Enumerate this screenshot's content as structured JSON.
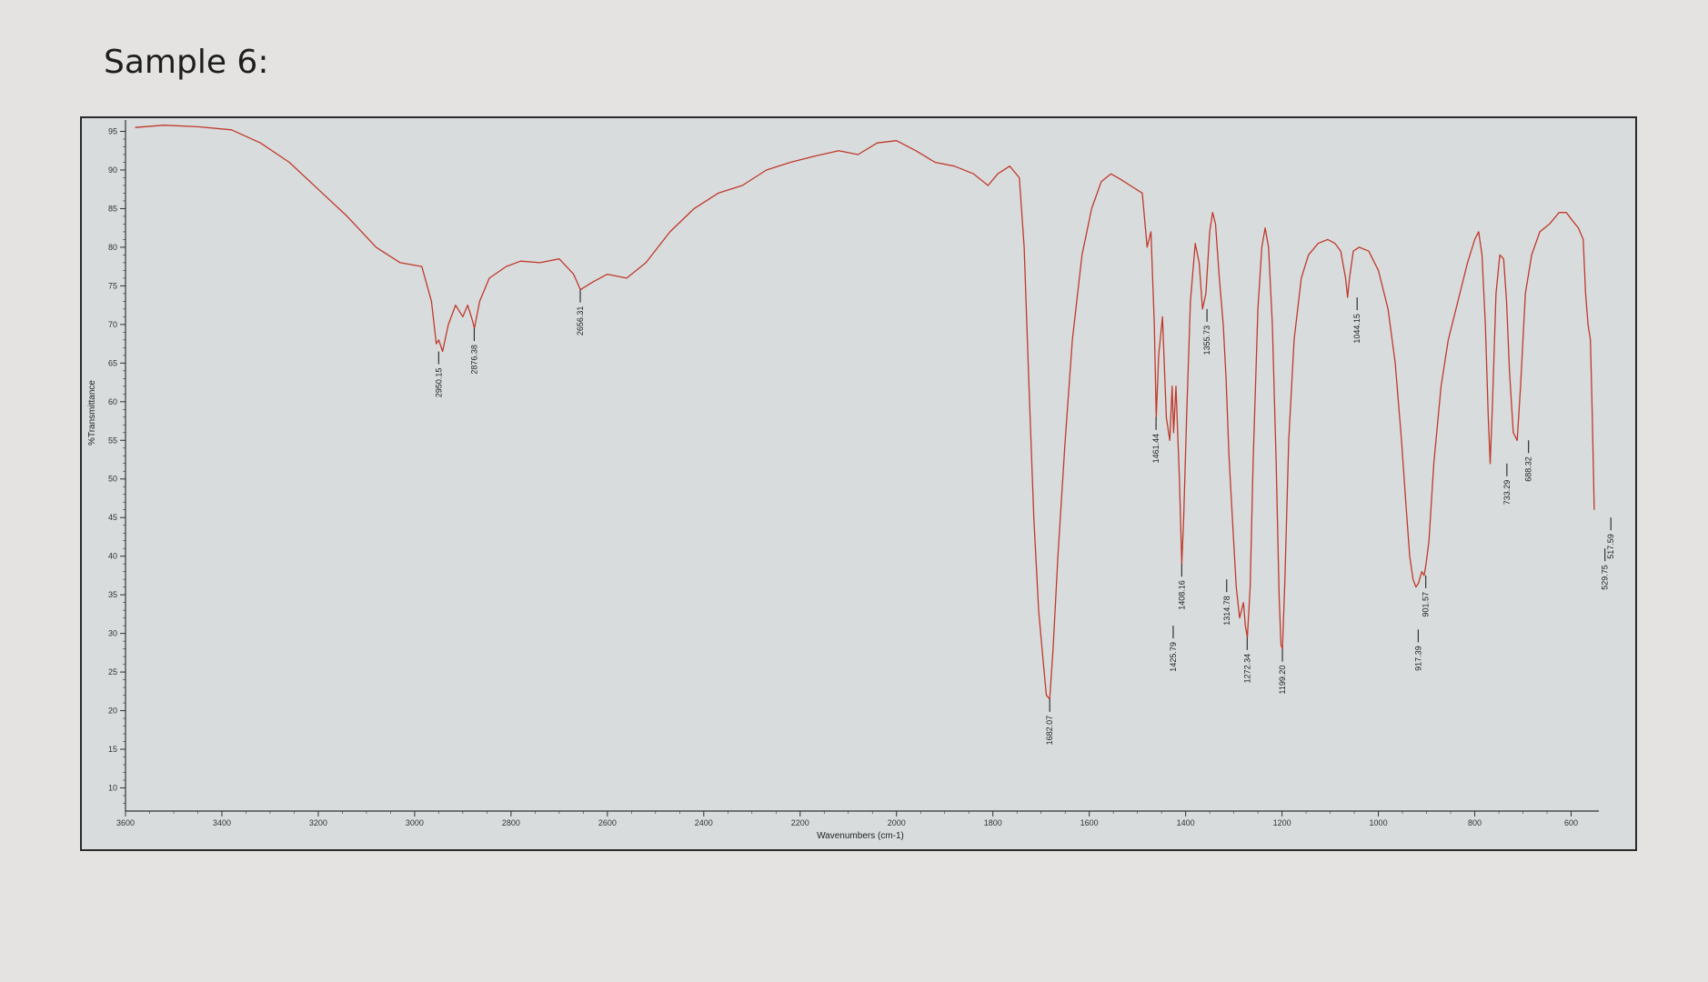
{
  "page": {
    "heading": "Sample 6:"
  },
  "chart_data": {
    "type": "line",
    "title": "",
    "xlabel": "Wavenumbers (cm-1)",
    "ylabel": "%Transmittance",
    "xlim": [
      3600,
      550
    ],
    "ylim": [
      7,
      96
    ],
    "x_reversed": true,
    "grid": false,
    "legend": "none",
    "colors": {
      "line": "#c0392b",
      "axis": "#333333",
      "marker": "#111111"
    },
    "x_ticks": [
      {
        "value": 3600,
        "label": "3600"
      },
      {
        "value": 3400,
        "label": "3400"
      },
      {
        "value": 3200,
        "label": "3200"
      },
      {
        "value": 3000,
        "label": "3000"
      },
      {
        "value": 2800,
        "label": "2800"
      },
      {
        "value": 2600,
        "label": "2600"
      },
      {
        "value": 2400,
        "label": "2400"
      },
      {
        "value": 2200,
        "label": "2200"
      },
      {
        "value": 2000,
        "label": "2000"
      },
      {
        "value": 1800,
        "label": "1800"
      },
      {
        "value": 1600,
        "label": "1600"
      },
      {
        "value": 1400,
        "label": "1400"
      },
      {
        "value": 1200,
        "label": "1200"
      },
      {
        "value": 1000,
        "label": "1000"
      },
      {
        "value": 800,
        "label": "800"
      },
      {
        "value": 600,
        "label": "600"
      }
    ],
    "y_ticks": [
      {
        "value": 95,
        "label": "95"
      },
      {
        "value": 90,
        "label": "90"
      },
      {
        "value": 85,
        "label": "85"
      },
      {
        "value": 80,
        "label": "80"
      },
      {
        "value": 75,
        "label": "75"
      },
      {
        "value": 70,
        "label": "70"
      },
      {
        "value": 65,
        "label": "65"
      },
      {
        "value": 60,
        "label": "60"
      },
      {
        "value": 55,
        "label": "55"
      },
      {
        "value": 50,
        "label": "50"
      },
      {
        "value": 45,
        "label": "45"
      },
      {
        "value": 40,
        "label": "40"
      },
      {
        "value": 35,
        "label": "35"
      },
      {
        "value": 30,
        "label": "30"
      },
      {
        "value": 25,
        "label": "25"
      },
      {
        "value": 20,
        "label": "20"
      },
      {
        "value": 15,
        "label": "15"
      },
      {
        "value": 10,
        "label": "10"
      }
    ],
    "series": [
      {
        "points": [
          [
            3580,
            95.5
          ],
          [
            3520,
            95.8
          ],
          [
            3450,
            95.6
          ],
          [
            3380,
            95.2
          ],
          [
            3320,
            93.5
          ],
          [
            3260,
            91
          ],
          [
            3200,
            87.5
          ],
          [
            3140,
            84
          ],
          [
            3080,
            80
          ],
          [
            3030,
            78
          ],
          [
            2985,
            77.5
          ],
          [
            2965,
            73
          ],
          [
            2955,
            67.5
          ],
          [
            2950,
            68
          ],
          [
            2942,
            66.5
          ],
          [
            2930,
            70
          ],
          [
            2915,
            72.5
          ],
          [
            2900,
            71
          ],
          [
            2890,
            72.5
          ],
          [
            2880,
            70.5
          ],
          [
            2876,
            69.5
          ],
          [
            2865,
            73
          ],
          [
            2845,
            76
          ],
          [
            2810,
            77.5
          ],
          [
            2780,
            78.2
          ],
          [
            2740,
            78
          ],
          [
            2700,
            78.5
          ],
          [
            2670,
            76.5
          ],
          [
            2656,
            74.5
          ],
          [
            2630,
            75.5
          ],
          [
            2600,
            76.5
          ],
          [
            2560,
            76
          ],
          [
            2520,
            78
          ],
          [
            2470,
            82
          ],
          [
            2420,
            85
          ],
          [
            2370,
            87
          ],
          [
            2320,
            88
          ],
          [
            2270,
            90
          ],
          [
            2220,
            91
          ],
          [
            2170,
            91.8
          ],
          [
            2120,
            92.5
          ],
          [
            2080,
            92
          ],
          [
            2040,
            93.5
          ],
          [
            2000,
            93.8
          ],
          [
            1960,
            92.5
          ],
          [
            1920,
            91
          ],
          [
            1880,
            90.5
          ],
          [
            1840,
            89.5
          ],
          [
            1810,
            88
          ],
          [
            1790,
            89.5
          ],
          [
            1765,
            90.5
          ],
          [
            1745,
            89
          ],
          [
            1735,
            80
          ],
          [
            1725,
            62
          ],
          [
            1715,
            45
          ],
          [
            1705,
            33
          ],
          [
            1695,
            26
          ],
          [
            1689,
            22
          ],
          [
            1682,
            21.5
          ],
          [
            1675,
            28
          ],
          [
            1665,
            40
          ],
          [
            1650,
            55
          ],
          [
            1635,
            68
          ],
          [
            1615,
            79
          ],
          [
            1595,
            85
          ],
          [
            1575,
            88.5
          ],
          [
            1555,
            89.5
          ],
          [
            1535,
            88.8
          ],
          [
            1515,
            88
          ],
          [
            1490,
            87
          ],
          [
            1480,
            80
          ],
          [
            1472,
            82
          ],
          [
            1465,
            70
          ],
          [
            1461,
            58
          ],
          [
            1456,
            66
          ],
          [
            1448,
            71
          ],
          [
            1440,
            58
          ],
          [
            1433,
            55
          ],
          [
            1428,
            62
          ],
          [
            1425,
            56
          ],
          [
            1420,
            62
          ],
          [
            1413,
            50
          ],
          [
            1408,
            39
          ],
          [
            1404,
            45
          ],
          [
            1398,
            58
          ],
          [
            1390,
            73
          ],
          [
            1380,
            80.5
          ],
          [
            1372,
            78
          ],
          [
            1365,
            72
          ],
          [
            1358,
            74
          ],
          [
            1350,
            82
          ],
          [
            1344,
            84.5
          ],
          [
            1338,
            83
          ],
          [
            1330,
            76
          ],
          [
            1322,
            70
          ],
          [
            1316,
            63
          ],
          [
            1310,
            53
          ],
          [
            1303,
            45
          ],
          [
            1295,
            36
          ],
          [
            1288,
            32
          ],
          [
            1280,
            34
          ],
          [
            1276,
            31
          ],
          [
            1272,
            29.5
          ],
          [
            1266,
            36
          ],
          [
            1260,
            52
          ],
          [
            1250,
            72
          ],
          [
            1242,
            80
          ],
          [
            1235,
            82.5
          ],
          [
            1228,
            80
          ],
          [
            1220,
            70
          ],
          [
            1212,
            52
          ],
          [
            1206,
            35
          ],
          [
            1202,
            28.5
          ],
          [
            1199,
            28
          ],
          [
            1194,
            37
          ],
          [
            1186,
            55
          ],
          [
            1175,
            68
          ],
          [
            1160,
            76
          ],
          [
            1145,
            79
          ],
          [
            1125,
            80.5
          ],
          [
            1105,
            81
          ],
          [
            1090,
            80.5
          ],
          [
            1078,
            79.5
          ],
          [
            1068,
            76
          ],
          [
            1064,
            73.5
          ],
          [
            1060,
            76
          ],
          [
            1052,
            79.5
          ],
          [
            1040,
            80
          ],
          [
            1020,
            79.5
          ],
          [
            1000,
            77
          ],
          [
            980,
            72
          ],
          [
            965,
            65
          ],
          [
            952,
            55
          ],
          [
            942,
            46
          ],
          [
            935,
            40
          ],
          [
            928,
            37
          ],
          [
            922,
            36
          ],
          [
            917,
            36.5
          ],
          [
            910,
            38
          ],
          [
            905,
            37.5
          ],
          [
            901,
            39
          ],
          [
            895,
            42
          ],
          [
            885,
            52
          ],
          [
            870,
            62
          ],
          [
            855,
            68
          ],
          [
            835,
            73
          ],
          [
            815,
            78
          ],
          [
            800,
            81
          ],
          [
            792,
            82
          ],
          [
            785,
            79
          ],
          [
            778,
            70
          ],
          [
            772,
            58
          ],
          [
            768,
            52
          ],
          [
            763,
            60
          ],
          [
            756,
            74
          ],
          [
            748,
            79
          ],
          [
            740,
            78.5
          ],
          [
            734,
            73
          ],
          [
            728,
            64
          ],
          [
            720,
            56
          ],
          [
            712,
            55
          ],
          [
            705,
            62
          ],
          [
            695,
            74
          ],
          [
            682,
            79
          ],
          [
            665,
            82
          ],
          [
            645,
            83
          ],
          [
            625,
            84.5
          ],
          [
            610,
            84.5
          ],
          [
            598,
            83.5
          ],
          [
            585,
            82.5
          ],
          [
            575,
            81
          ],
          [
            570,
            74
          ],
          [
            565,
            70
          ],
          [
            560,
            68
          ],
          [
            556,
            58
          ],
          [
            552,
            46
          ]
        ]
      }
    ],
    "peak_labels": [
      {
        "x": 2950.15,
        "y": 66.5,
        "label": "2950.15"
      },
      {
        "x": 2876.38,
        "y": 69.5,
        "label": "2876.38"
      },
      {
        "x": 2656.31,
        "y": 74.5,
        "label": "2656.31"
      },
      {
        "x": 1682.07,
        "y": 21.5,
        "label": "1682.07"
      },
      {
        "x": 1461.44,
        "y": 58,
        "label": "1461.44"
      },
      {
        "x": 1425.79,
        "y": 31,
        "label": "1425.79"
      },
      {
        "x": 1408.16,
        "y": 39,
        "label": "1408.16"
      },
      {
        "x": 1355.73,
        "y": 72,
        "label": "1355.73"
      },
      {
        "x": 1314.78,
        "y": 37,
        "label": "1314.78"
      },
      {
        "x": 1272.34,
        "y": 29.5,
        "label": "1272.34"
      },
      {
        "x": 1199.2,
        "y": 28,
        "label": "1199.20"
      },
      {
        "x": 1044.15,
        "y": 73.5,
        "label": "1044.15"
      },
      {
        "x": 917.39,
        "y": 30.5,
        "label": "917.39"
      },
      {
        "x": 901.57,
        "y": 37.5,
        "label": "901.57"
      },
      {
        "x": 733.29,
        "y": 52,
        "label": "733.29"
      },
      {
        "x": 688.32,
        "y": 55,
        "label": "688.32"
      },
      {
        "x": 529.75,
        "y": 41,
        "label": "529.75"
      },
      {
        "x": 517.59,
        "y": 45,
        "label": "517.59"
      }
    ]
  }
}
